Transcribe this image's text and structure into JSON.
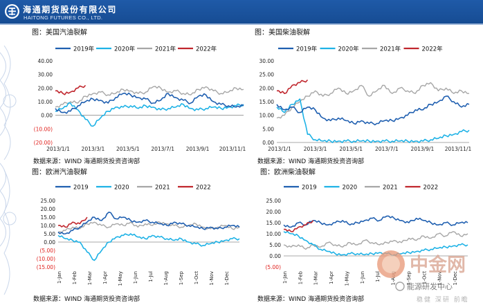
{
  "header": {
    "company_cn": "海通期货股份有限公司",
    "company_en": "HAITONG FUTURES CO., LTD."
  },
  "watermark": {
    "brand": "中金网",
    "account": "能源研发中心",
    "slogan": "稳健 深研 前瞻"
  },
  "colors": {
    "header_bg": "#1f5aa8",
    "s2019": "#1f5fb0",
    "s2020": "#1eb2e6",
    "s2021": "#a6a6a6",
    "s2022": "#c0262d",
    "negative_tick": "#e0201c"
  },
  "chart_data": [
    {
      "type": "line",
      "title": "图：美国汽油裂解",
      "source": "数据来源：WIND   海通期货投资咨询部",
      "ylim": [
        -20,
        40
      ],
      "yticks": [
        40,
        30,
        20,
        10,
        0,
        -10,
        -20
      ],
      "ytick_labels": [
        "40.00",
        "30.00",
        "20.00",
        "10.00",
        "0.00",
        "(10.00)",
        "(20.00)"
      ],
      "xtick_labels": [
        "2013/1/1",
        "2013/3/1",
        "2013/5/1",
        "2013/7/1",
        "2013/9/1",
        "2013/11/1"
      ],
      "series": [
        {
          "name": "2019",
          "values": [
            5,
            2,
            3,
            7,
            10,
            12,
            11,
            9,
            13,
            16,
            15,
            13,
            12,
            9,
            11,
            16,
            13,
            11,
            9,
            14,
            15,
            10,
            8,
            7,
            6,
            7
          ]
        },
        {
          "name": "2020",
          "values": [
            3,
            5,
            9,
            4,
            -3,
            -8,
            -2,
            3,
            6,
            6,
            7,
            5,
            7,
            6,
            4,
            5,
            6,
            8,
            5,
            4,
            5,
            6,
            5,
            6,
            7,
            8
          ]
        },
        {
          "name": "2021",
          "values": [
            6,
            8,
            10,
            9,
            14,
            16,
            17,
            15,
            16,
            19,
            18,
            16,
            17,
            21,
            20,
            17,
            18,
            16,
            15,
            19,
            21,
            18,
            16,
            17,
            20,
            19
          ]
        },
        {
          "name": "2022",
          "values": [
            18,
            16,
            17,
            20,
            22
          ]
        }
      ]
    },
    {
      "type": "line",
      "title": "图：美国柴油裂解",
      "source": "数据来源：WIND   海通期货投资咨询部",
      "ylim": [
        0,
        30
      ],
      "yticks": [
        30,
        25,
        20,
        15,
        10,
        5,
        0
      ],
      "ytick_labels": [
        "30.00",
        "25.00",
        "20.00",
        "15.00",
        "10.00",
        "5.00",
        "0.00"
      ],
      "xtick_labels": [
        "2013/1/1",
        "2013/3/1",
        "2013/5/1",
        "2013/7/1",
        "2013/9/1",
        "2013/11/1"
      ],
      "series": [
        {
          "name": "2019",
          "values": [
            14,
            12,
            13,
            11,
            13,
            12,
            9,
            8,
            9,
            8,
            7,
            8,
            7,
            7,
            8,
            8,
            9,
            10,
            12,
            12,
            14,
            15,
            17,
            15,
            13,
            14
          ]
        },
        {
          "name": "2020",
          "values": [
            13,
            11,
            14,
            16,
            3,
            1,
            0.5,
            0.5,
            0.5,
            0.5,
            0.5,
            0.5,
            0.5,
            0.5,
            0.5,
            0.5,
            0.5,
            0.5,
            0.5,
            0.5,
            1,
            1.5,
            2.5,
            3,
            4,
            4.5
          ]
        },
        {
          "name": "2021",
          "values": [
            9,
            10,
            13,
            15,
            17,
            19,
            17,
            18,
            20,
            18,
            19,
            21,
            17,
            19,
            21,
            18,
            20,
            19,
            18,
            21,
            22,
            19,
            20,
            18,
            19,
            18
          ]
        },
        {
          "name": "2022",
          "values": [
            19,
            18,
            21,
            22,
            23
          ]
        }
      ]
    },
    {
      "type": "line",
      "title": "图：欧洲汽油裂解",
      "source": "数据来源：WIND    海通期货投资咨询部",
      "ylim": [
        -15,
        25
      ],
      "yticks": [
        25,
        20,
        15,
        10,
        5,
        0,
        -5,
        -10,
        -15
      ],
      "ytick_labels": [
        "25.00",
        "20.00",
        "15.00",
        "10.00",
        "5.00",
        "0.00",
        "(5.00)",
        "(10.00)",
        "(15.00)"
      ],
      "xtick_labels": [
        "1-Jan",
        "1-Feb",
        "1-Mar",
        "1-Apr",
        "1-May",
        "1-Jun",
        "1-Jul",
        "1-Aug",
        "1-Sep",
        "1-Oct",
        "1-Nov",
        "1-Dec"
      ],
      "series": [
        {
          "name": "2019",
          "values": [
            6,
            5,
            7,
            9,
            12,
            15,
            13,
            18,
            14,
            15,
            13,
            12,
            13,
            12,
            11,
            10,
            12,
            11,
            10,
            9,
            8,
            9,
            8,
            9,
            10,
            9
          ]
        },
        {
          "name": "2020",
          "values": [
            4,
            2,
            1,
            0,
            -6,
            -11,
            -5,
            0,
            3,
            4,
            5,
            3,
            2,
            4,
            3,
            2,
            1,
            2,
            0,
            -1,
            -2,
            -1,
            0,
            1,
            2,
            2
          ]
        },
        {
          "name": "2021",
          "values": [
            6,
            7,
            9,
            8,
            11,
            12,
            10,
            9,
            11,
            10,
            12,
            9,
            11,
            10,
            12,
            11,
            10,
            9,
            10,
            11,
            9,
            8,
            9,
            10,
            8,
            9
          ]
        },
        {
          "name": "2022",
          "values": [
            10,
            9,
            12,
            11,
            15
          ]
        }
      ]
    },
    {
      "type": "line",
      "title": "图：欧洲柴油裂解",
      "source": "数据来源：WIND    海通期货投资咨询部",
      "ylim": [
        -5,
        25
      ],
      "yticks": [
        25,
        20,
        15,
        10,
        5,
        0,
        -5
      ],
      "ytick_labels": [
        "25.00",
        "20.00",
        "15.00",
        "10.00",
        "5.00",
        "0.00",
        "(5.00)"
      ],
      "xtick_labels": [
        "1-Jan",
        "1-Feb",
        "1-Mar",
        "1-Apr",
        "1-May",
        "1-Jun",
        "1-Jul",
        "1-Aug",
        "1-Sep",
        "1-Oct",
        "1-Nov",
        "1-Dec"
      ],
      "series": [
        {
          "name": "2019",
          "values": [
            14,
            13,
            15,
            14,
            16,
            15,
            14,
            15,
            16,
            14,
            15,
            16,
            17,
            16,
            18,
            17,
            16,
            15,
            17,
            16,
            15,
            14,
            15,
            14,
            15,
            15
          ]
        },
        {
          "name": "2020",
          "values": [
            11,
            10,
            9,
            7,
            5,
            3,
            2,
            1,
            0.5,
            1,
            1,
            0.5,
            1,
            1.5,
            1,
            0.5,
            1,
            1.5,
            2,
            2.5,
            3,
            3.5,
            4,
            4.5,
            5,
            5
          ]
        },
        {
          "name": "2021",
          "values": [
            5,
            4,
            5,
            3,
            5,
            4,
            6,
            5,
            4,
            6,
            5,
            7,
            6,
            5,
            6,
            7,
            6,
            8,
            7,
            9,
            8,
            10,
            9,
            11,
            9,
            10
          ]
        },
        {
          "name": "2022",
          "values": [
            12,
            11,
            13,
            14,
            16
          ]
        }
      ]
    }
  ]
}
